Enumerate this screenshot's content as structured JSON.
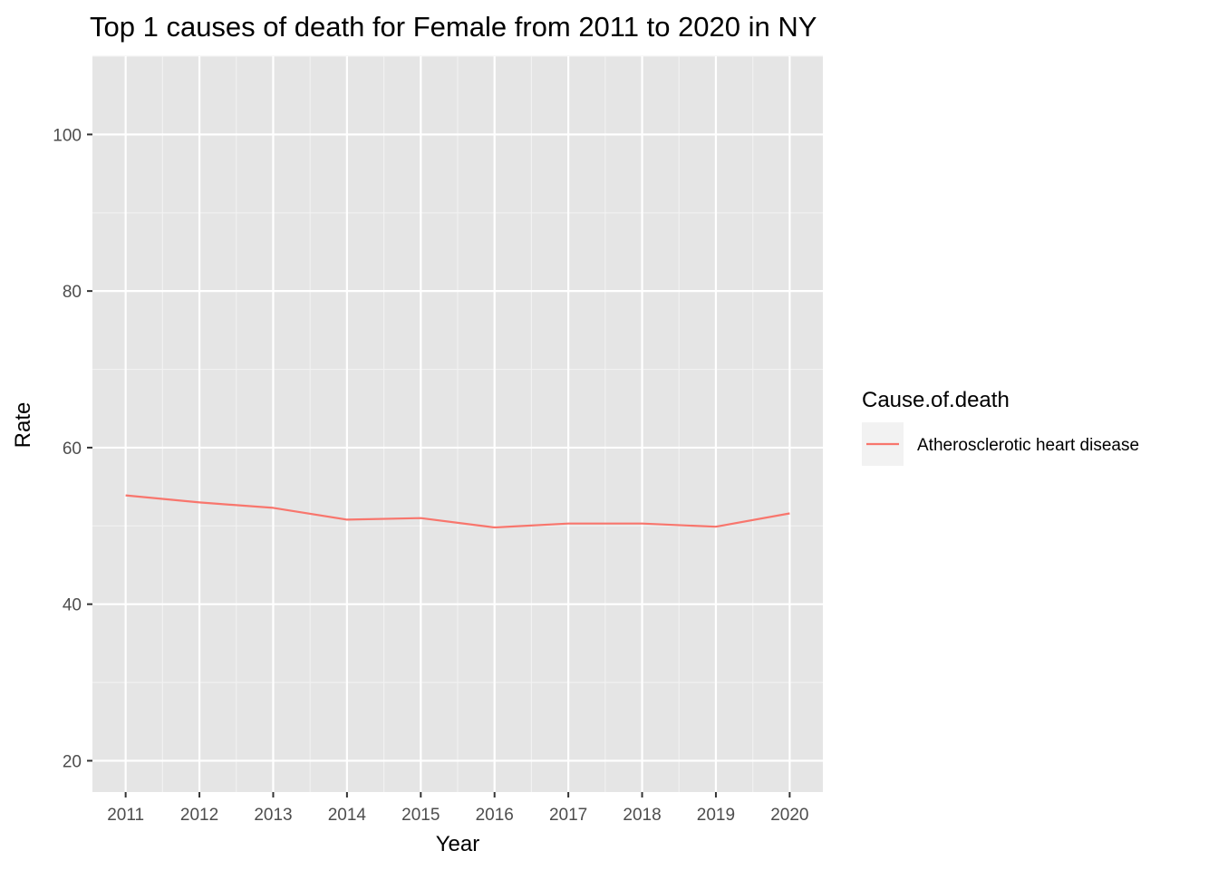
{
  "chart_data": {
    "type": "line",
    "title": "Top 1 causes of death for Female from 2011 to 2020 in NY",
    "xlabel": "Year",
    "ylabel": "Rate",
    "x": [
      2011,
      2012,
      2013,
      2014,
      2015,
      2016,
      2017,
      2018,
      2019,
      2020
    ],
    "x_tick_labels": [
      "2011",
      "2012",
      "2013",
      "2014",
      "2015",
      "2016",
      "2017",
      "2018",
      "2019",
      "2020"
    ],
    "y_ticks": [
      20,
      40,
      60,
      80,
      100
    ],
    "y_tick_labels": [
      "20",
      "40",
      "60",
      "80",
      "100"
    ],
    "xlim": [
      2010.55,
      2020.45
    ],
    "ylim": [
      16,
      110
    ],
    "grid": true,
    "legend": {
      "title": "Cause.of.death",
      "position": "right"
    },
    "series": [
      {
        "name": "Atherosclerotic heart disease",
        "color": "#f8766d",
        "values": [
          53.9,
          53.0,
          52.3,
          50.8,
          51.0,
          49.8,
          50.3,
          50.3,
          49.9,
          51.6
        ]
      }
    ]
  }
}
